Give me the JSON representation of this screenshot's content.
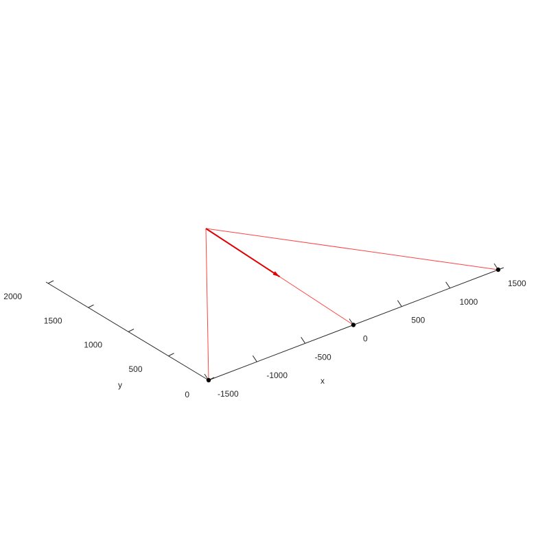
{
  "chart_data": {
    "type": "3d-line",
    "title": "",
    "xlabel": "x",
    "ylabel": "y",
    "zlabel": "",
    "xlim": [
      -1500,
      1500
    ],
    "ylim": [
      0,
      2000
    ],
    "x_ticks": [
      -1500,
      -1000,
      -500,
      0,
      500,
      1000,
      1500
    ],
    "y_ticks": [
      0,
      500,
      1000,
      1500,
      2000
    ],
    "x_tick_labels": [
      "-1500",
      "-1000",
      "-500",
      "0",
      "500",
      "1000",
      "1500"
    ],
    "y_tick_labels": [
      "0",
      "500",
      "1000",
      "1500",
      "2000"
    ],
    "grid": false,
    "apex": {
      "x": -1500,
      "y": 0,
      "z_height": 1
    },
    "base_points": [
      {
        "x": -1500,
        "y": 0
      },
      {
        "x": 0,
        "y": 0
      },
      {
        "x": 1500,
        "y": 0
      }
    ],
    "lines": [
      {
        "from": "apex",
        "to_point": 0
      },
      {
        "from": "apex",
        "to_point": 1
      },
      {
        "from": "apex",
        "to_point": 2
      }
    ],
    "arrow": {
      "from": "apex",
      "toward_point": 1,
      "fraction": 0.5
    },
    "colors": {
      "lines": "#ff0000",
      "arrow": "#e00000",
      "points": "#000000",
      "axes": "#262626"
    }
  }
}
